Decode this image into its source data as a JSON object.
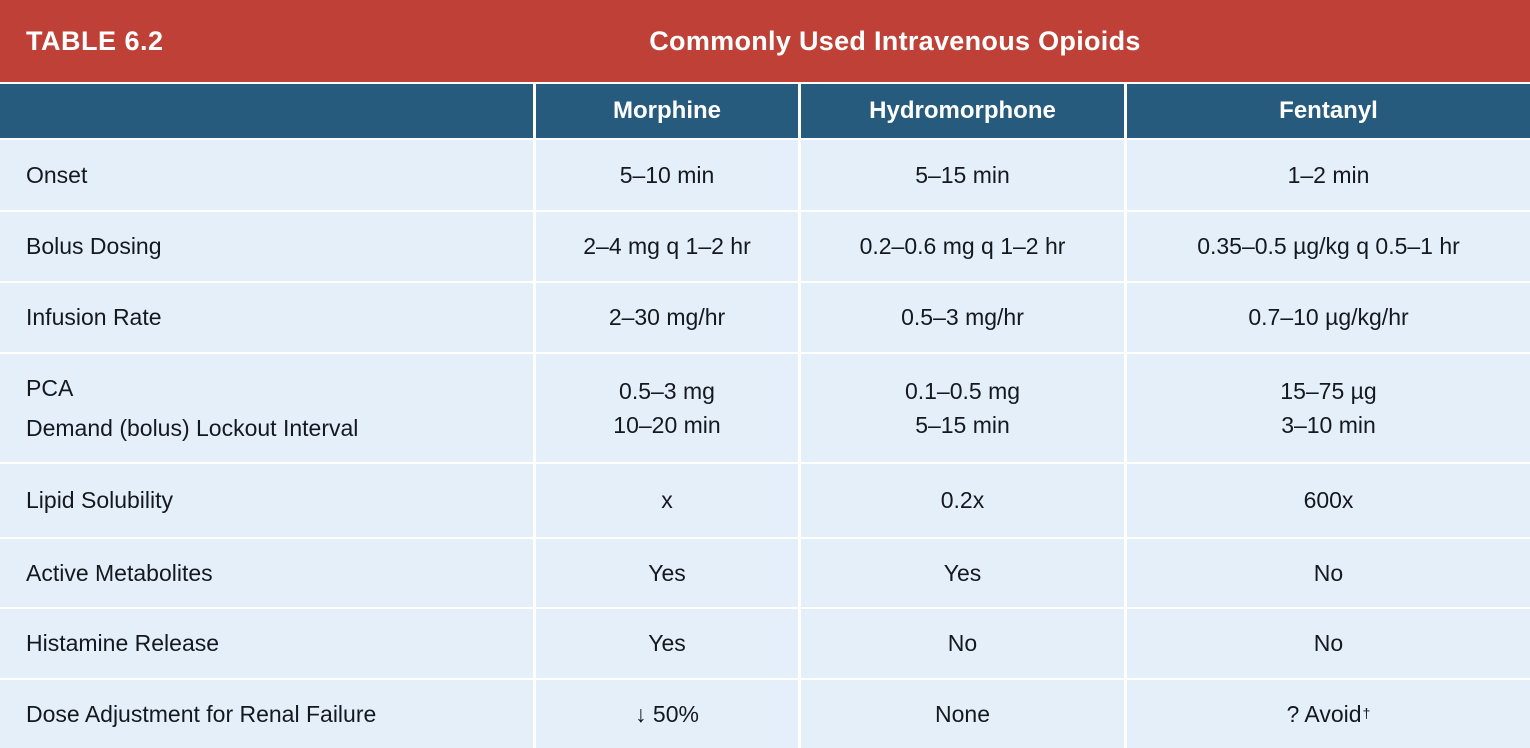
{
  "table": {
    "tag": "TABLE 6.2",
    "title": "Commonly Used Intravenous Opioids",
    "columns": [
      "Morphine",
      "Hydromorphone",
      "Fentanyl"
    ],
    "rows": [
      {
        "label": "Onset",
        "values": [
          "5–10 min",
          "5–15 min",
          "1–2 min"
        ]
      },
      {
        "label": "Bolus Dosing",
        "values": [
          "2–4 mg q 1–2 hr",
          "0.2–0.6 mg q 1–2 hr",
          "0.35–0.5 µg/kg q 0.5–1 hr"
        ]
      },
      {
        "label": "Infusion Rate",
        "values": [
          "2–30 mg/hr",
          "0.5–3 mg/hr",
          "0.7–10 µg/kg/hr"
        ]
      },
      {
        "label": "PCA\nDemand (bolus) Lockout Interval",
        "values": [
          "0.5–3 mg\n10–20 min",
          "0.1–0.5 mg\n5–15 min",
          "15–75 µg\n3–10 min"
        ]
      },
      {
        "label": "Lipid Solubility",
        "values": [
          "x",
          "0.2x",
          "600x"
        ]
      },
      {
        "label": "Active Metabolites",
        "values": [
          "Yes",
          "Yes",
          "No"
        ]
      },
      {
        "label": "Histamine Release",
        "values": [
          "Yes",
          "No",
          "No"
        ]
      },
      {
        "label": "Dose Adjustment for Renal Failure",
        "values": [
          "↓ 50%",
          "None",
          "? Avoid"
        ],
        "footnote_mark": "†"
      }
    ],
    "colors": {
      "banner_red": "#bf4037",
      "header_blue": "#265b7e",
      "row_bg": "#e5effa",
      "separator": "#ffffff",
      "text": "#14181f",
      "header_text": "#ffffff"
    }
  }
}
